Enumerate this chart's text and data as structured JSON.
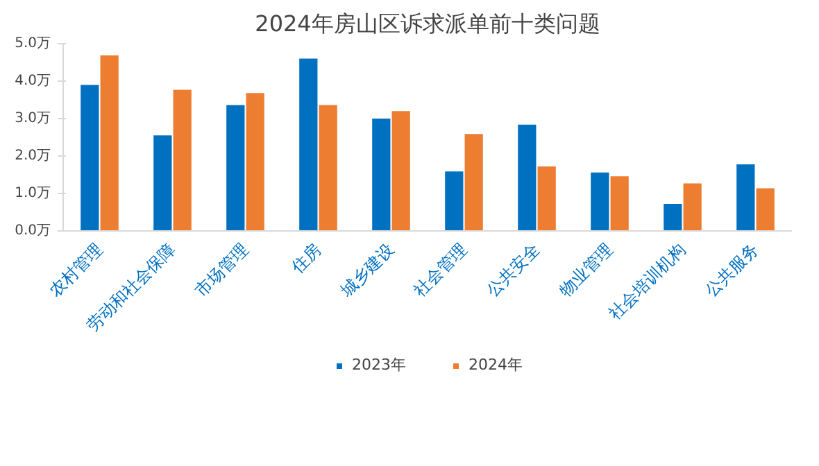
{
  "chart_data": {
    "type": "bar",
    "title": "2024年房山区诉求派单前十类问题",
    "categories": [
      "农村管理",
      "劳动和社会保障",
      "市场管理",
      "住房",
      "城乡建设",
      "社会管理",
      "公共安全",
      "物业管理",
      "社会培训机构",
      "公共服务"
    ],
    "series": [
      {
        "name": "2023年",
        "color": "#0070c0",
        "values": [
          3.9,
          2.55,
          3.36,
          4.6,
          3.0,
          1.59,
          2.84,
          1.56,
          0.72,
          1.78
        ]
      },
      {
        "name": "2024年",
        "color": "#ed7d31",
        "values": [
          4.69,
          3.77,
          3.68,
          3.36,
          3.2,
          2.59,
          1.72,
          1.46,
          1.27,
          1.14
        ]
      }
    ],
    "ylim": [
      0,
      5
    ],
    "yticks": [
      {
        "value": 0,
        "label": "0.0万"
      },
      {
        "value": 1,
        "label": "1.0万"
      },
      {
        "value": 2,
        "label": "2.0万"
      },
      {
        "value": 3,
        "label": "3.0万"
      },
      {
        "value": 4,
        "label": "4.0万"
      },
      {
        "value": 5,
        "label": "5.0万"
      }
    ],
    "grid": false,
    "legend": "bottom"
  }
}
